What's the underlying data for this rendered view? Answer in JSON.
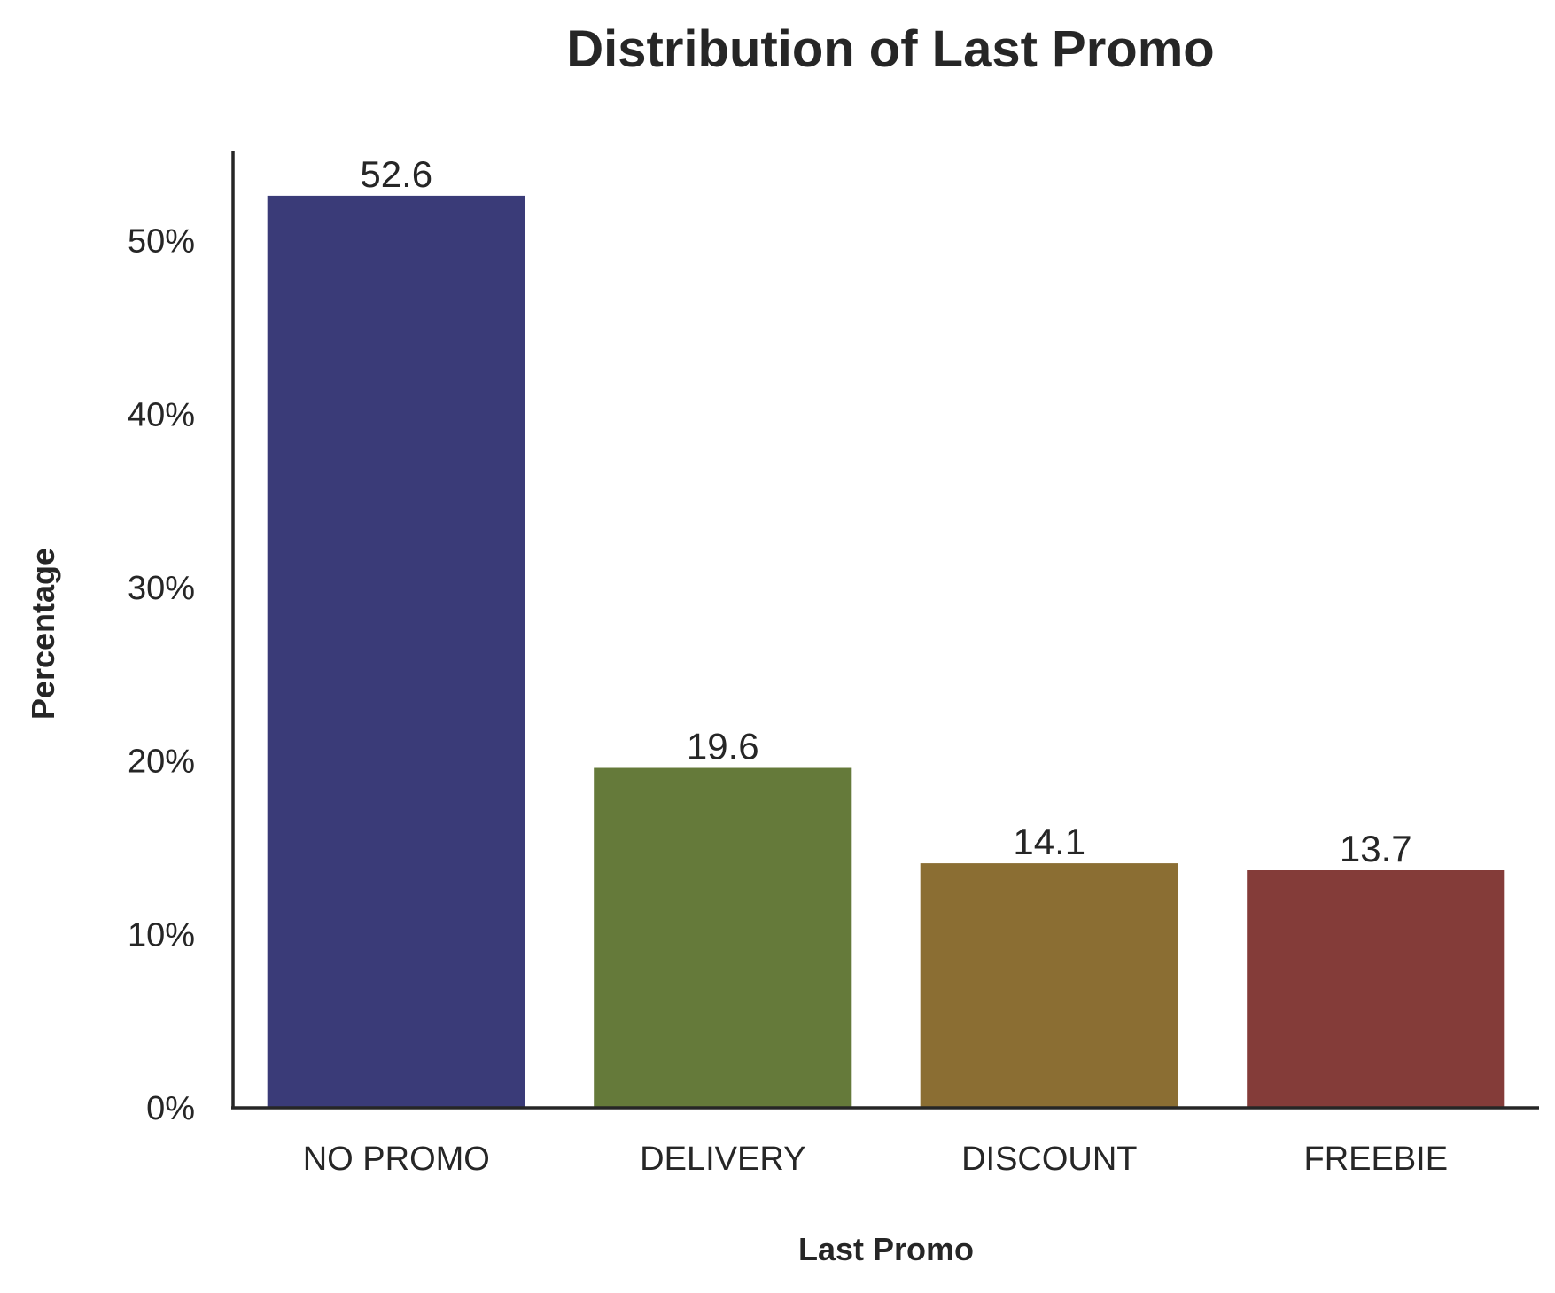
{
  "chart_data": {
    "type": "bar",
    "title": "Distribution of Last Promo",
    "xlabel": "Last Promo",
    "ylabel": "Percentage",
    "categories": [
      "NO PROMO",
      "DELIVERY",
      "DISCOUNT",
      "FREEBIE"
    ],
    "values": [
      52.6,
      19.6,
      14.1,
      13.7
    ],
    "value_labels": [
      "52.6",
      "19.6",
      "14.1",
      "13.7"
    ],
    "colors": [
      "#3a3b78",
      "#657a3a",
      "#8b6e33",
      "#843c39"
    ],
    "ylim": [
      0,
      55.2
    ],
    "yticks": [
      0,
      10,
      20,
      30,
      40,
      50
    ],
    "ytick_labels": [
      "0%",
      "10%",
      "20%",
      "30%",
      "40%",
      "50%"
    ],
    "grid": false,
    "legend": "none",
    "axis_color": "#262626"
  }
}
